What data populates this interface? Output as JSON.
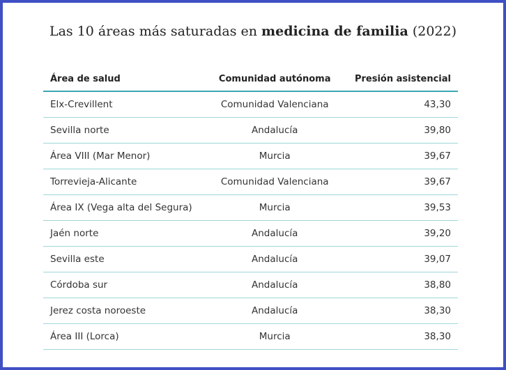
{
  "title": {
    "before": "Las 10 áreas más saturadas en",
    "bold": "medicina de familia",
    "after": "(2022)"
  },
  "table": {
    "columns": [
      "Área de salud",
      "Comunidad autónoma",
      "Presión asistencial"
    ],
    "rows": [
      [
        "Elx-Crevillent",
        "Comunidad Valenciana",
        "43,30"
      ],
      [
        "Sevilla norte",
        "Andalucía",
        "39,80"
      ],
      [
        "Área VIII (Mar Menor)",
        "Murcia",
        "39,67"
      ],
      [
        "Torrevieja-Alicante",
        "Comunidad Valenciana",
        "39,67"
      ],
      [
        "Área IX (Vega alta del Segura)",
        "Murcia",
        "39,53"
      ],
      [
        "Jaén norte",
        "Andalucía",
        "39,20"
      ],
      [
        "Sevilla este",
        "Andalucía",
        "39,07"
      ],
      [
        "Córdoba sur",
        "Andalucía",
        "38,80"
      ],
      [
        "Jerez costa noroeste",
        "Andalucía",
        "38,30"
      ],
      [
        "Área III (Lorca)",
        "Murcia",
        "38,30"
      ]
    ]
  }
}
